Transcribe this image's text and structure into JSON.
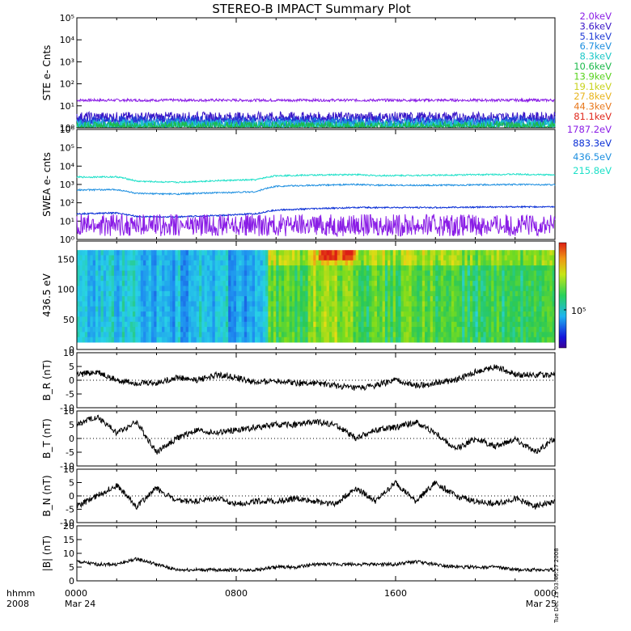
{
  "title": "STEREO-B IMPACT Summary Plot",
  "colors": {
    "ste_trace": "#8a1de6",
    "swea_2": "#0a2fd6",
    "swea_3": "#1e8fe0",
    "swea_4": "#1de0c8",
    "trace_black": "#000000"
  },
  "legend_ste": [
    {
      "label": "2.0keV",
      "color": "#8a1de6"
    },
    {
      "label": "3.6keV",
      "color": "#3a16c8"
    },
    {
      "label": "5.1keV",
      "color": "#1f3ad6"
    },
    {
      "label": "6.7keV",
      "color": "#1d8fe0"
    },
    {
      "label": "8.3keV",
      "color": "#1dc8c8"
    },
    {
      "label": "10.6keV",
      "color": "#1dba4c"
    },
    {
      "label": "13.9keV",
      "color": "#58d21c"
    },
    {
      "label": "19.1keV",
      "color": "#c8d21c"
    },
    {
      "label": "27.8keV",
      "color": "#e8b41c"
    },
    {
      "label": "44.3keV",
      "color": "#e8781c"
    },
    {
      "label": "81.1keV",
      "color": "#e0281c"
    }
  ],
  "legend_swea": [
    {
      "label": "1787.2eV",
      "color": "#8a1de6"
    },
    {
      "label": "883.3eV",
      "color": "#0a2fd6"
    },
    {
      "label": "436.5eV",
      "color": "#1e8fe0"
    },
    {
      "label": "215.8eV",
      "color": "#1de0c8"
    }
  ],
  "colorbar_label": "10⁵",
  "side_annotation": "Tue Dec 13 03:46:27 2008",
  "time_axis": {
    "left_labels": [
      "hhmm",
      "2008"
    ],
    "ticks": [
      {
        "hour": 0,
        "label": "0000",
        "sub": "Mar 24"
      },
      {
        "hour": 8,
        "label": "0800",
        "sub": ""
      },
      {
        "hour": 16,
        "label": "1600",
        "sub": ""
      },
      {
        "hour": 24,
        "label": "0000",
        "sub": "Mar 25"
      }
    ]
  },
  "chart_data": [
    {
      "type": "line",
      "ylabel": "STE e- Cnts",
      "yscale": "log",
      "ylim": [
        1,
        100000
      ],
      "yticks": [
        "10⁰",
        "10¹",
        "10²",
        "10³",
        "10⁴",
        "10⁵"
      ],
      "xlim_hours": [
        0,
        24
      ],
      "series": [
        {
          "name": "2.0keV",
          "approx_level": 18
        },
        {
          "name": "3.6keV",
          "approx_level": 3
        },
        {
          "name": "5.1keV",
          "approx_level": 2
        },
        {
          "name": "6.7keV",
          "approx_level": 1.5
        },
        {
          "name": "8.3keV",
          "approx_level": 1.3
        },
        {
          "name": "10.6keV",
          "approx_level": 1.1
        }
      ]
    },
    {
      "type": "line",
      "ylabel": "SWEA e- cnts",
      "yscale": "log",
      "ylim": [
        1,
        1000000
      ],
      "yticks": [
        "10⁰",
        "10¹",
        "10²",
        "10³",
        "10⁴",
        "10⁵",
        "10⁶"
      ],
      "xlim_hours": [
        0,
        24
      ],
      "series": [
        {
          "name": "215.8eV",
          "points": [
            [
              0,
              2500
            ],
            [
              2,
              2600
            ],
            [
              3,
              1500
            ],
            [
              5,
              1300
            ],
            [
              7,
              1600
            ],
            [
              9,
              1800
            ],
            [
              10,
              3000
            ],
            [
              14,
              3500
            ],
            [
              15,
              3000
            ],
            [
              18,
              3200
            ],
            [
              22,
              3600
            ],
            [
              24,
              3300
            ]
          ]
        },
        {
          "name": "436.5eV",
          "points": [
            [
              0,
              500
            ],
            [
              2,
              520
            ],
            [
              3,
              320
            ],
            [
              5,
              300
            ],
            [
              7,
              350
            ],
            [
              9,
              400
            ],
            [
              10,
              800
            ],
            [
              14,
              1000
            ],
            [
              15,
              900
            ],
            [
              18,
              900
            ],
            [
              22,
              1000
            ],
            [
              24,
              950
            ]
          ]
        },
        {
          "name": "883.3eV",
          "points": [
            [
              0,
              25
            ],
            [
              2,
              28
            ],
            [
              3,
              18
            ],
            [
              5,
              17
            ],
            [
              7,
              20
            ],
            [
              9,
              25
            ],
            [
              10,
              40
            ],
            [
              14,
              55
            ],
            [
              18,
              55
            ],
            [
              22,
              60
            ],
            [
              24,
              60
            ]
          ]
        },
        {
          "name": "1787.2eV",
          "points": [
            [
              0,
              6
            ],
            [
              24,
              6
            ]
          ]
        }
      ]
    },
    {
      "type": "heatmap",
      "ylabel": "436.5 eV",
      "ylim": [
        0,
        180
      ],
      "yticks": [
        "0",
        "50",
        "100",
        "150"
      ],
      "xlim_hours": [
        0,
        24
      ],
      "description_levels": "low before ~09:30, higher after, peak near 13:00"
    },
    {
      "type": "line",
      "ylabel": "B_R (nT)",
      "ylim": [
        -10,
        10
      ],
      "yticks": [
        "-10",
        "-5",
        "0",
        "5",
        "10"
      ],
      "series": [
        {
          "name": "",
          "points": [
            [
              0,
              2
            ],
            [
              1,
              3
            ],
            [
              2,
              0
            ],
            [
              3,
              -1
            ],
            [
              4,
              -1
            ],
            [
              5,
              1
            ],
            [
              6,
              0
            ],
            [
              7,
              2
            ],
            [
              8,
              1
            ],
            [
              9,
              -1
            ],
            [
              10,
              0
            ],
            [
              11,
              -1
            ],
            [
              12,
              -1
            ],
            [
              13,
              -2
            ],
            [
              14,
              -3
            ],
            [
              15,
              -2
            ],
            [
              16,
              0
            ],
            [
              17,
              -2
            ],
            [
              18,
              -1
            ],
            [
              19,
              0
            ],
            [
              20,
              3
            ],
            [
              21,
              5
            ],
            [
              22,
              2
            ],
            [
              23,
              2
            ],
            [
              24,
              2
            ]
          ]
        }
      ]
    },
    {
      "type": "line",
      "ylabel": "B_T (nT)",
      "ylim": [
        -10,
        10
      ],
      "yticks": [
        "-10",
        "-5",
        "0",
        "5",
        "10"
      ],
      "series": [
        {
          "name": "",
          "points": [
            [
              0,
              5
            ],
            [
              1,
              8
            ],
            [
              2,
              2
            ],
            [
              3,
              6
            ],
            [
              4,
              -5
            ],
            [
              5,
              0
            ],
            [
              6,
              3
            ],
            [
              7,
              2
            ],
            [
              8,
              3
            ],
            [
              9,
              4
            ],
            [
              10,
              5
            ],
            [
              11,
              5
            ],
            [
              12,
              6
            ],
            [
              13,
              5
            ],
            [
              14,
              0
            ],
            [
              15,
              3
            ],
            [
              16,
              4
            ],
            [
              17,
              6
            ],
            [
              18,
              2
            ],
            [
              19,
              -4
            ],
            [
              20,
              0
            ],
            [
              21,
              -3
            ],
            [
              22,
              0
            ],
            [
              23,
              -5
            ],
            [
              24,
              0
            ]
          ]
        }
      ]
    },
    {
      "type": "line",
      "ylabel": "B_N (nT)",
      "ylim": [
        -10,
        10
      ],
      "yticks": [
        "-10",
        "-5",
        "0",
        "5",
        "10"
      ],
      "series": [
        {
          "name": "",
          "points": [
            [
              0,
              -4
            ],
            [
              1,
              0
            ],
            [
              2,
              4
            ],
            [
              3,
              -4
            ],
            [
              4,
              3
            ],
            [
              5,
              -2
            ],
            [
              6,
              -2
            ],
            [
              7,
              -1
            ],
            [
              8,
              -3
            ],
            [
              9,
              -2
            ],
            [
              10,
              -2
            ],
            [
              11,
              -1
            ],
            [
              12,
              -2
            ],
            [
              13,
              -3
            ],
            [
              14,
              3
            ],
            [
              15,
              -2
            ],
            [
              16,
              5
            ],
            [
              17,
              -2
            ],
            [
              18,
              5
            ],
            [
              19,
              0
            ],
            [
              20,
              -2
            ],
            [
              21,
              -3
            ],
            [
              22,
              -1
            ],
            [
              23,
              -4
            ],
            [
              24,
              -2
            ]
          ]
        }
      ]
    },
    {
      "type": "line",
      "ylabel": "|B| (nT)",
      "ylim": [
        0,
        20
      ],
      "yticks": [
        "0",
        "5",
        "10",
        "15",
        "20"
      ],
      "series": [
        {
          "name": "",
          "points": [
            [
              0,
              7
            ],
            [
              1,
              6
            ],
            [
              2,
              6
            ],
            [
              3,
              8
            ],
            [
              4,
              6
            ],
            [
              5,
              4
            ],
            [
              6,
              4
            ],
            [
              7,
              4
            ],
            [
              8,
              4
            ],
            [
              9,
              4
            ],
            [
              10,
              5
            ],
            [
              11,
              5
            ],
            [
              12,
              6
            ],
            [
              13,
              6
            ],
            [
              14,
              6
            ],
            [
              15,
              6
            ],
            [
              16,
              6
            ],
            [
              17,
              7
            ],
            [
              18,
              6
            ],
            [
              19,
              5
            ],
            [
              20,
              5
            ],
            [
              21,
              5
            ],
            [
              22,
              4
            ],
            [
              23,
              4
            ],
            [
              24,
              4
            ]
          ]
        }
      ]
    }
  ]
}
